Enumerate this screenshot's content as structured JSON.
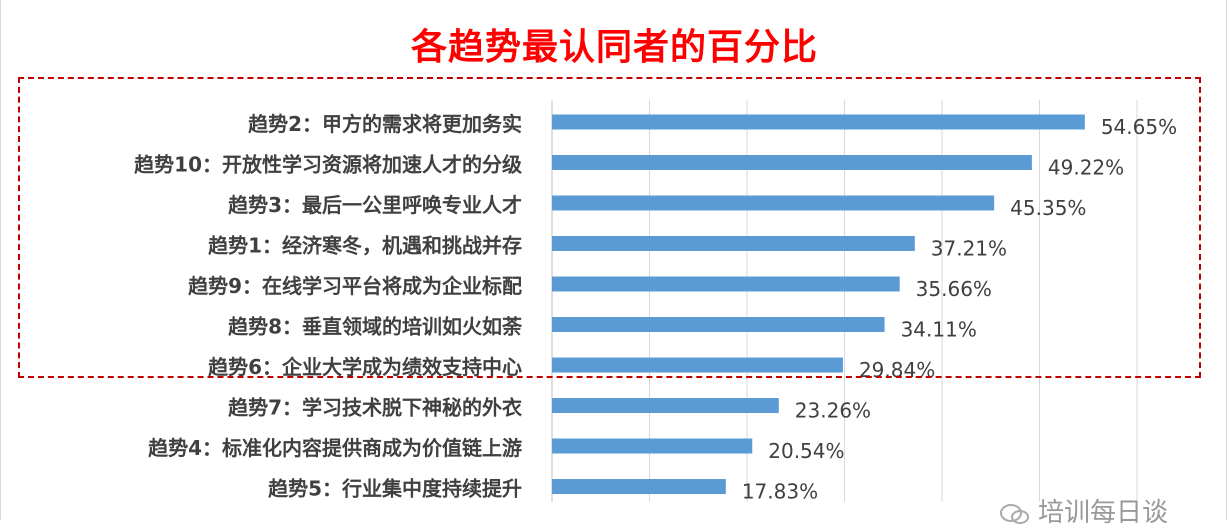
{
  "title": "各趋势最认同者的百分比",
  "watermark": {
    "text": "培训每日谈",
    "icon": "wechat-icon"
  },
  "colors": {
    "bar": "#5b9bd5",
    "title": "#ff0000",
    "highlight": "#c00000",
    "grid": "#d9d9d9"
  },
  "chart_data": {
    "type": "bar",
    "orientation": "horizontal",
    "title": "各趋势最认同者的百分比",
    "xlim": [
      0,
      60
    ],
    "grid": true,
    "categories": [
      "趋势2：甲方的需求将更加务实",
      "趋势10：开放性学习资源将加速人才的分级",
      "趋势3：最后一公里呼唤专业人才",
      "趋势1：经济寒冬，机遇和挑战并存",
      "趋势9：在线学习平台将成为企业标配",
      "趋势8：垂直领域的培训如火如荼",
      "趋势6：企业大学成为绩效支持中心",
      "趋势7：学习技术脱下神秘的外衣",
      "趋势4：标准化内容提供商成为价值链上游",
      "趋势5：行业集中度持续提升"
    ],
    "values": [
      54.65,
      49.22,
      45.35,
      37.21,
      35.66,
      34.11,
      29.84,
      23.26,
      20.54,
      17.83
    ],
    "labels": [
      "54.65%",
      "49.22%",
      "45.35%",
      "37.21%",
      "35.66%",
      "34.11%",
      "29.84%",
      "23.26%",
      "20.54%",
      "17.83%"
    ],
    "highlighted_count": 7
  }
}
